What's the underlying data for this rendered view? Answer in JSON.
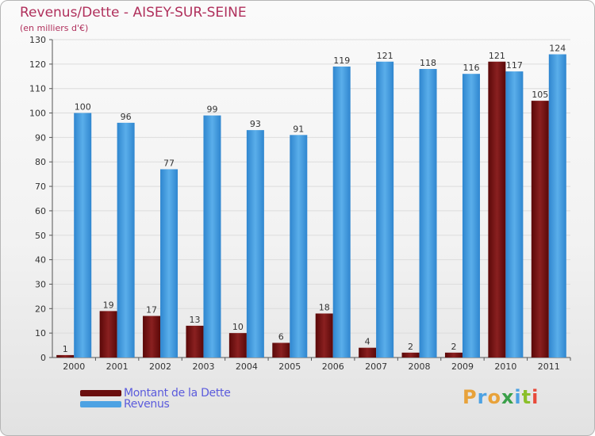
{
  "title": "Revenus/Dette - AISEY-SUR-SEINE",
  "subtitle": "(en milliers d'€)",
  "brand": "Proxiti",
  "colors": {
    "title": "#b0305c",
    "legend_text": "#5b5bdc",
    "debt": "#7a1414",
    "revenue": "#4da2e3"
  },
  "legend": [
    {
      "label": "Montant de la Dette",
      "color": "#6b0f0f"
    },
    {
      "label": "Revenus",
      "color": "#4da2e3"
    }
  ],
  "chart_data": {
    "type": "bar",
    "title": "Revenus/Dette - AISEY-SUR-SEINE",
    "subtitle": "(en milliers d'€)",
    "xlabel": "",
    "ylabel": "",
    "ylim": [
      0,
      130
    ],
    "yticks": [
      0,
      10,
      20,
      30,
      40,
      50,
      60,
      70,
      80,
      90,
      100,
      110,
      120,
      130
    ],
    "grid": true,
    "legend_position": "bottom-left",
    "categories": [
      "2000",
      "2001",
      "2002",
      "2003",
      "2004",
      "2005",
      "2006",
      "2007",
      "2008",
      "2009",
      "2010",
      "2011"
    ],
    "series": [
      {
        "name": "Montant de la Dette",
        "values": [
          1,
          19,
          17,
          13,
          10,
          6,
          18,
          4,
          2,
          2,
          121,
          105
        ]
      },
      {
        "name": "Revenus",
        "values": [
          100,
          96,
          77,
          99,
          93,
          91,
          119,
          121,
          118,
          116,
          117,
          124
        ]
      }
    ]
  }
}
